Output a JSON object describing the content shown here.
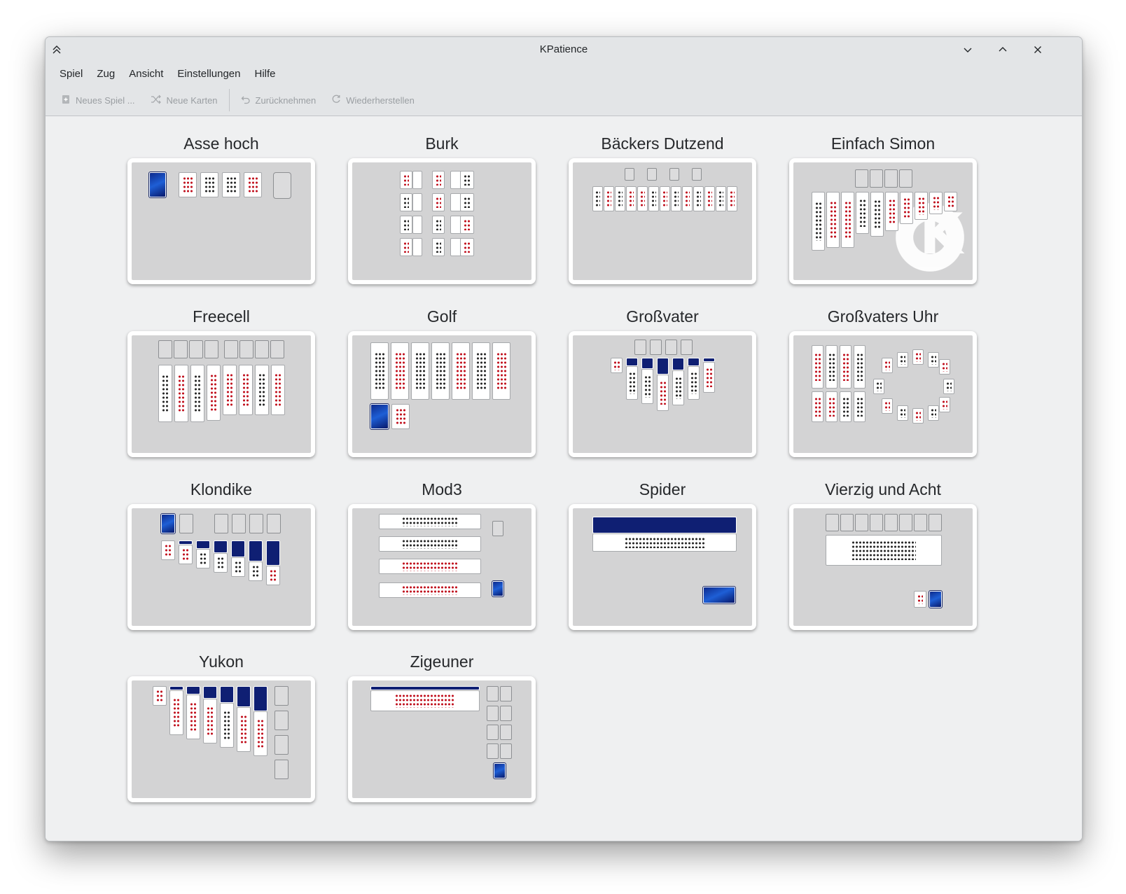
{
  "window": {
    "title": "KPatience"
  },
  "menubar": [
    "Spiel",
    "Zug",
    "Ansicht",
    "Einstellungen",
    "Hilfe"
  ],
  "toolbar": [
    {
      "label": "Neues Spiel ...",
      "icon": "new-game-icon",
      "enabled": false
    },
    {
      "label": "Neue Karten",
      "icon": "shuffle-icon",
      "enabled": false
    },
    {
      "label": "Zurücknehmen",
      "icon": "undo-icon",
      "enabled": false
    },
    {
      "label": "Wiederherstellen",
      "icon": "redo-icon",
      "enabled": false
    }
  ],
  "colors": {
    "card_back": "#1b3fae",
    "red_suit": "#c1121f",
    "preview_bg": "#d3d3d4"
  },
  "games": [
    "Asse hoch",
    "Burk",
    "Bäckers Dutzend",
    "Einfach Simon",
    "Freecell",
    "Golf",
    "Großvater",
    "Großvaters Uhr",
    "Klondike",
    "Mod3",
    "Spider",
    "Vierzig und Acht",
    "Yukon",
    "Zigeuner"
  ]
}
